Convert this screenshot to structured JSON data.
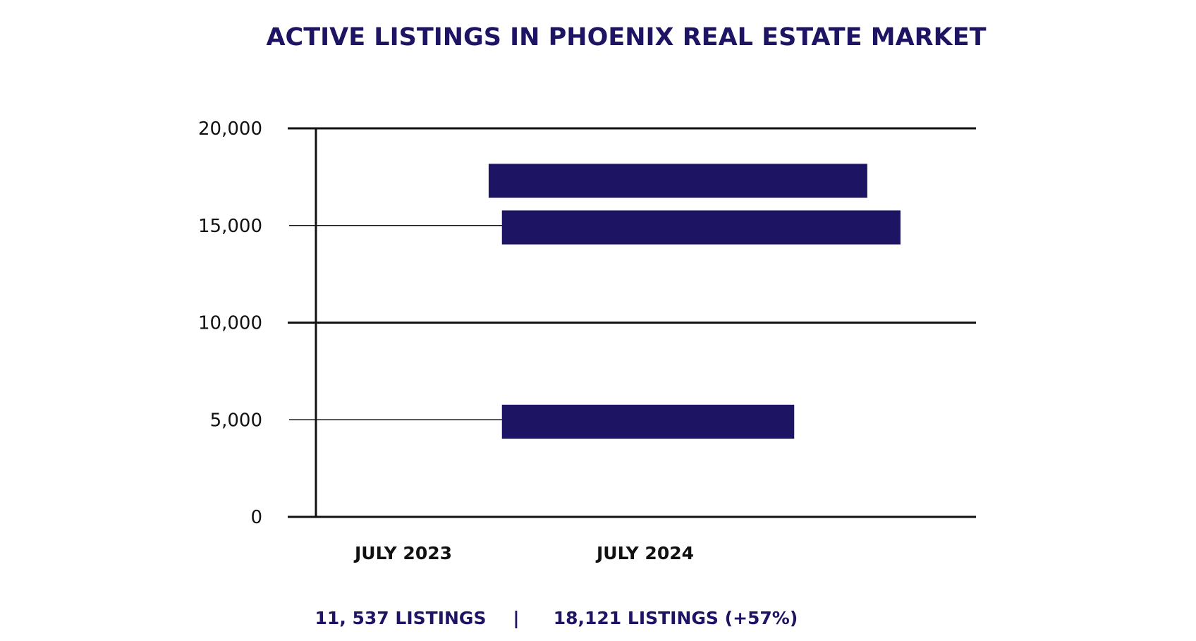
{
  "chart_data": {
    "type": "bar",
    "orientation": "horizontal",
    "title": "ACTIVE LISTINGS IN PHOENIX REAL ESTATE MARKET",
    "xlabel": "",
    "ylabel": "",
    "y_ticks": [
      "20,000",
      "15,000",
      "10,000",
      "5,000",
      "0"
    ],
    "y_tick_values": [
      20000,
      15000,
      10000,
      5000,
      0
    ],
    "ylim": [
      0,
      20000
    ],
    "categories": [
      "JULY 2023",
      "JULY 2024"
    ],
    "bars": [
      {
        "y_center": 17300,
        "x_start": 0.26,
        "x_end": 0.83
      },
      {
        "y_center": 14900,
        "x_start": 0.28,
        "x_end": 0.88
      },
      {
        "y_center": 4900,
        "x_start": 0.28,
        "x_end": 0.72
      }
    ],
    "bar_band_height": 1750,
    "grid_major": [
      20000,
      10000,
      0
    ],
    "grid_minor": [
      15000,
      5000
    ],
    "colors": {
      "bar": "#1e1464",
      "title": "#1e1464",
      "axis": "#111111"
    }
  },
  "summary": {
    "left": "11, 537 LISTINGS",
    "separator": "|",
    "right": "18,121 LISTINGS (+57%)"
  }
}
